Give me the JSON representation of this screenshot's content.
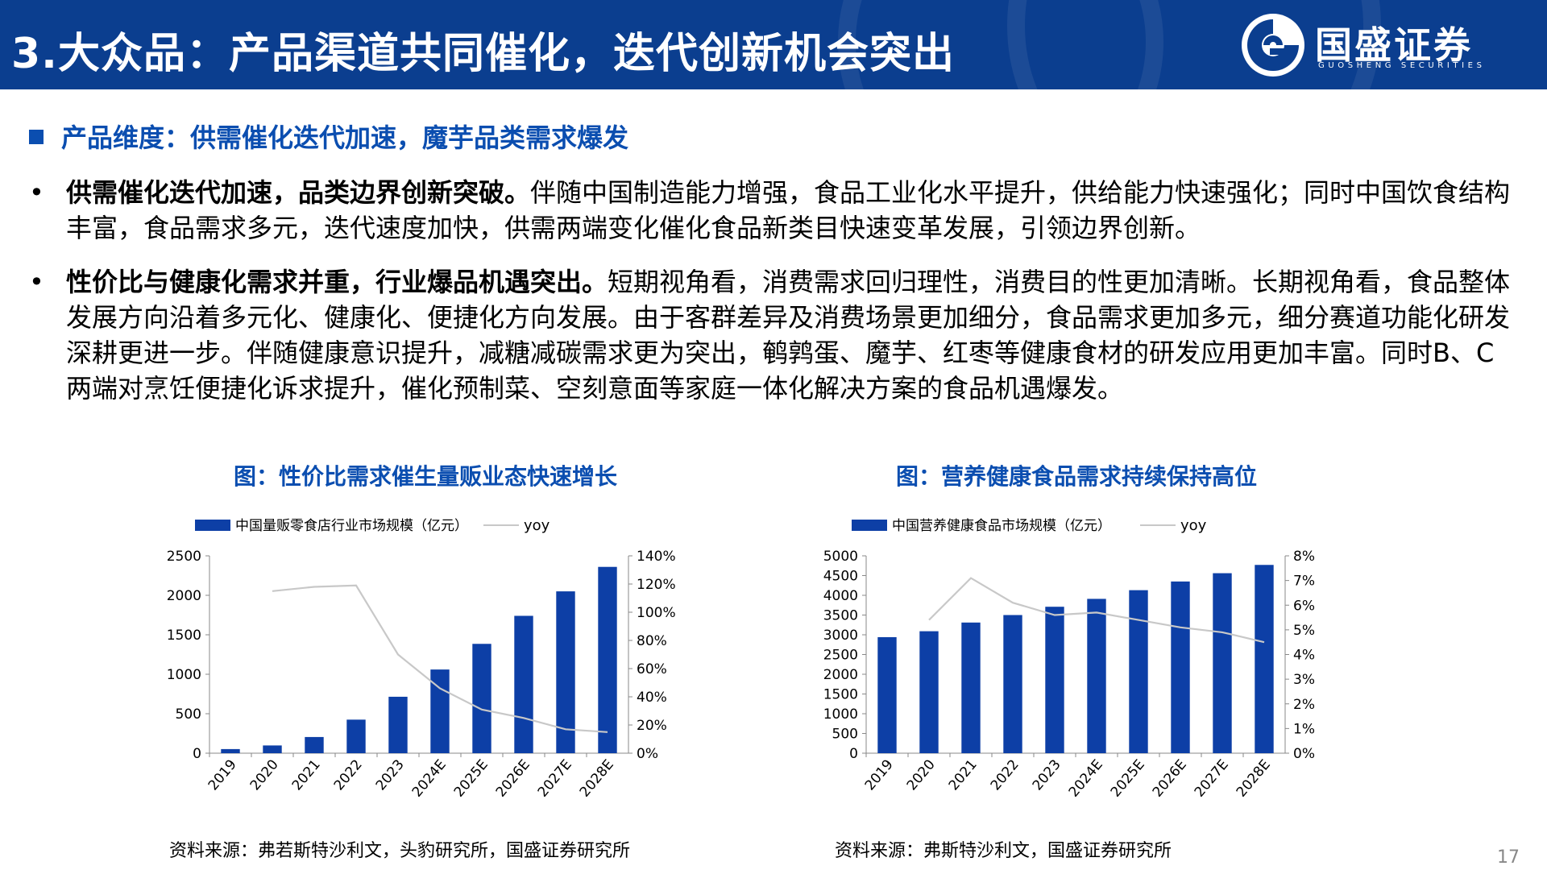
{
  "header": {
    "number": "3.",
    "title": "大众品：产品渠道共同催化，迭代创新机会突出",
    "logo_name": "国盛证券",
    "logo_sub": "GUOSHENG SECURITIES"
  },
  "section_heading": "产品维度：供需催化迭代加速，魔芋品类需求爆发",
  "bullets": [
    {
      "bold": "供需催化迭代加速，品类边界创新突破。",
      "text": "伴随中国制造能力增强，食品工业化水平提升，供给能力快速强化；同时中国饮食结构丰富，食品需求多元，迭代速度加快，供需两端变化催化食品新类目快速变革发展，引领边界创新。"
    },
    {
      "bold": "性价比与健康化需求并重，行业爆品机遇突出。",
      "text": "短期视角看，消费需求回归理性，消费目的性更加清晰。长期视角看，食品整体发展方向沿着多元化、健康化、便捷化方向发展。由于客群差异及消费场景更加细分，食品需求更加多元，细分赛道功能化研发深耕更进一步。伴随健康意识提升，减糖减碳需求更为突出，鹌鹑蛋、魔芋、红枣等健康食材的研发应用更加丰富。同时B、C两端对烹饪便捷化诉求提升，催化预制菜、空刻意面等家庭一体化解决方案的食品机遇爆发。"
    }
  ],
  "colors": {
    "header_bg": "#0b3e8f",
    "accent": "#0b4eb0",
    "bar": "#0d3fa6",
    "line": "#c8c8c8"
  },
  "chart_data": [
    {
      "type": "bar",
      "title": "图：性价比需求催生量贩业态快速增长",
      "categories": [
        "2019",
        "2020",
        "2021",
        "2022",
        "2023",
        "2024E",
        "2025E",
        "2026E",
        "2027E",
        "2028E"
      ],
      "series": [
        {
          "name": "中国量贩零食店行业市场规模（亿元）",
          "type": "bar",
          "axis": "left",
          "values": [
            52,
            98,
            205,
            425,
            715,
            1060,
            1385,
            1740,
            2050,
            2360
          ]
        },
        {
          "name": "yoy",
          "type": "line",
          "axis": "right",
          "values": [
            null,
            115,
            118,
            119,
            70,
            46,
            31,
            25,
            17,
            15
          ]
        }
      ],
      "ylim": [
        0,
        2500
      ],
      "yticks": [
        "0",
        "500",
        "1000",
        "1500",
        "2000",
        "2500"
      ],
      "y2lim": [
        0,
        140
      ],
      "y2ticks": [
        "0%",
        "20%",
        "40%",
        "60%",
        "80%",
        "100%",
        "120%",
        "140%"
      ],
      "legend": "top",
      "grid": false,
      "source": "资料来源：弗若斯特沙利文，头豹研究所，国盛证券研究所"
    },
    {
      "type": "bar",
      "title": "图：营养健康食品需求持续保持高位",
      "categories": [
        "2019",
        "2020",
        "2021",
        "2022",
        "2023",
        "2024E",
        "2025E",
        "2026E",
        "2027E",
        "2028E"
      ],
      "series": [
        {
          "name": "中国营养健康食品市场规模（亿元）",
          "type": "bar",
          "axis": "left",
          "values": [
            2940,
            3090,
            3310,
            3500,
            3710,
            3910,
            4130,
            4350,
            4560,
            4770
          ]
        },
        {
          "name": "yoy",
          "type": "line",
          "axis": "right",
          "values": [
            null,
            5.4,
            7.1,
            6.1,
            5.6,
            5.7,
            5.4,
            5.1,
            4.9,
            4.5
          ]
        }
      ],
      "ylim": [
        0,
        5000
      ],
      "yticks": [
        "0",
        "500",
        "1000",
        "1500",
        "2000",
        "2500",
        "3000",
        "3500",
        "4000",
        "4500",
        "5000"
      ],
      "y2lim": [
        0,
        8
      ],
      "y2ticks": [
        "0%",
        "1%",
        "2%",
        "3%",
        "4%",
        "5%",
        "6%",
        "7%",
        "8%"
      ],
      "legend": "top",
      "grid": false,
      "source": "资料来源：弗斯特沙利文，国盛证券研究所"
    }
  ],
  "page_number": "17"
}
